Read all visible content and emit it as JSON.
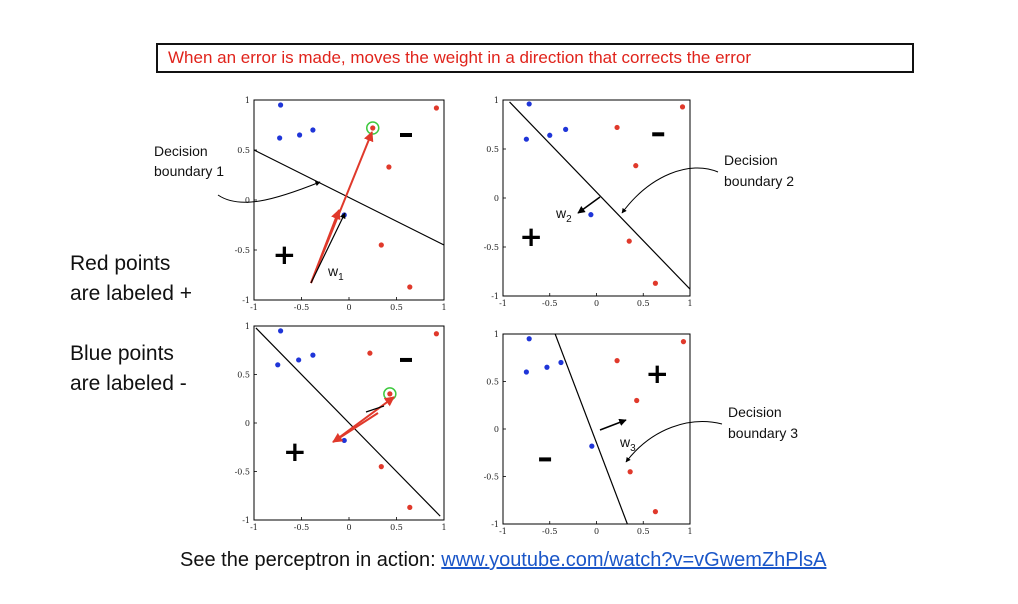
{
  "caption": "When an error is made, moves the weight in a direction that corrects the error",
  "side_text": {
    "red_line1": "Red points",
    "red_line2": "are labeled +",
    "blue_line1": "Blue points",
    "blue_line2": "are labeled -"
  },
  "footer": {
    "prefix": "See the perceptron in action: ",
    "link": "www.youtube.com/watch?v=vGwemZhPlsA"
  },
  "annotations": {
    "db1": [
      "Decision",
      "boundary 1"
    ],
    "db2": [
      "Decision",
      "boundary 2"
    ],
    "db3": [
      "Decision",
      "boundary 3"
    ],
    "w1": "w",
    "w1_sub": "1",
    "w2": "w",
    "w2_sub": "2",
    "w3": "w",
    "w3_sub": "3"
  },
  "colors": {
    "red": "#e0392b",
    "blue": "#1f35d8",
    "highlight": "#3ec93e",
    "caption_red": "#e0231b"
  },
  "chart_data": [
    {
      "type": "scatter",
      "xlim": [
        -1,
        1
      ],
      "ylim": [
        -1,
        1
      ],
      "xticks": [
        "-1",
        "-0.5",
        "0",
        "0.5",
        "1"
      ],
      "yticks": [
        "-1",
        "-0.5",
        "0",
        "0.5",
        "1"
      ],
      "red_points": [
        [
          0.25,
          0.72
        ],
        [
          0.92,
          0.92
        ],
        [
          0.42,
          0.33
        ],
        [
          0.34,
          -0.45
        ],
        [
          0.64,
          -0.87
        ]
      ],
      "blue_points": [
        [
          -0.72,
          0.95
        ],
        [
          -0.73,
          0.62
        ],
        [
          -0.52,
          0.65
        ],
        [
          -0.38,
          0.7
        ],
        [
          -0.05,
          -0.15
        ]
      ],
      "highlighted": [
        0.25,
        0.72
      ],
      "boundary": [
        [
          -1,
          0.5
        ],
        [
          1,
          -0.45
        ]
      ],
      "plus": [
        -0.68,
        -0.55
      ],
      "minus": [
        0.6,
        0.65
      ]
    },
    {
      "type": "scatter",
      "xlim": [
        -1,
        1
      ],
      "ylim": [
        -1,
        1
      ],
      "xticks": [
        "-1",
        "-0.5",
        "0",
        "0.5",
        "1"
      ],
      "yticks": [
        "-1",
        "-0.5",
        "0",
        "0.5",
        "1"
      ],
      "red_points": [
        [
          0.92,
          0.93
        ],
        [
          0.22,
          0.72
        ],
        [
          0.42,
          0.33
        ],
        [
          0.35,
          -0.44
        ],
        [
          0.63,
          -0.87
        ]
      ],
      "blue_points": [
        [
          -0.72,
          0.96
        ],
        [
          -0.75,
          0.6
        ],
        [
          -0.5,
          0.64
        ],
        [
          -0.33,
          0.7
        ],
        [
          -0.06,
          -0.17
        ]
      ],
      "boundary": [
        [
          -0.93,
          0.98
        ],
        [
          1,
          -0.93
        ]
      ],
      "plus": [
        -0.7,
        -0.4
      ],
      "minus": [
        0.66,
        0.65
      ]
    },
    {
      "type": "scatter",
      "xlim": [
        -1,
        1
      ],
      "ylim": [
        -1,
        1
      ],
      "xticks": [
        "-1",
        "-0.5",
        "0",
        "0.5",
        "1"
      ],
      "yticks": [
        "-1",
        "-0.5",
        "0",
        "0.5",
        "1"
      ],
      "red_points": [
        [
          0.92,
          0.92
        ],
        [
          0.22,
          0.72
        ],
        [
          0.43,
          0.3
        ],
        [
          0.34,
          -0.45
        ],
        [
          0.64,
          -0.87
        ]
      ],
      "blue_points": [
        [
          -0.72,
          0.95
        ],
        [
          -0.75,
          0.6
        ],
        [
          -0.53,
          0.65
        ],
        [
          -0.38,
          0.7
        ],
        [
          -0.05,
          -0.18
        ]
      ],
      "highlighted": [
        0.43,
        0.3
      ],
      "boundary": [
        [
          -0.98,
          0.98
        ],
        [
          0.96,
          -0.96
        ]
      ],
      "plus": [
        -0.57,
        -0.3
      ],
      "minus": [
        0.6,
        0.65
      ]
    },
    {
      "type": "scatter",
      "xlim": [
        -1,
        1
      ],
      "ylim": [
        -1,
        1
      ],
      "xticks": [
        "-1",
        "-0.5",
        "0",
        "0.5",
        "1"
      ],
      "yticks": [
        "-1",
        "-0.5",
        "0",
        "0.5",
        "1"
      ],
      "red_points": [
        [
          0.93,
          0.92
        ],
        [
          0.22,
          0.72
        ],
        [
          0.43,
          0.3
        ],
        [
          0.36,
          -0.45
        ],
        [
          0.63,
          -0.87
        ]
      ],
      "blue_points": [
        [
          -0.72,
          0.95
        ],
        [
          -0.75,
          0.6
        ],
        [
          -0.53,
          0.65
        ],
        [
          -0.38,
          0.7
        ],
        [
          -0.05,
          -0.18
        ]
      ],
      "boundary": [
        [
          -0.45,
          1.02
        ],
        [
          0.33,
          -1.0
        ]
      ],
      "plus": [
        0.65,
        0.58
      ],
      "minus": [
        -0.55,
        -0.32
      ]
    }
  ]
}
